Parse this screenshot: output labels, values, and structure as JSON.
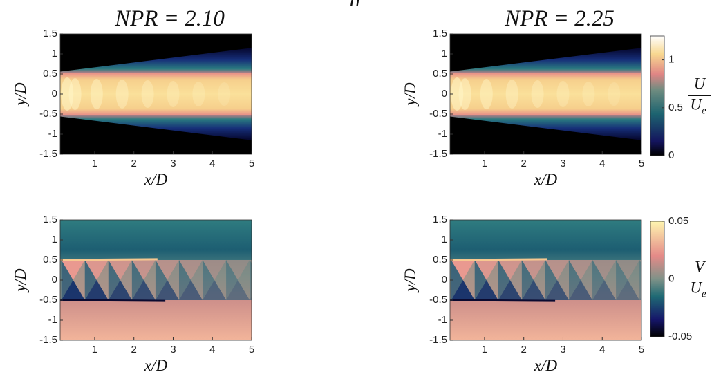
{
  "suptitle": "ff",
  "chart_data": [
    {
      "type": "heatmap",
      "title": "NPR = 2.10",
      "xlabel": "x/D",
      "ylabel": "y/D",
      "field": "U",
      "xlim": [
        0.12,
        5
      ],
      "ylim": [
        -1.5,
        1.5
      ],
      "xticks": [
        1,
        2,
        3,
        4,
        5
      ],
      "yticks": [
        -1.5,
        -1,
        -0.5,
        0,
        0.5,
        1,
        1.5
      ]
    },
    {
      "type": "heatmap",
      "title": "NPR = 2.25",
      "xlabel": "x/D",
      "ylabel": "y/D",
      "field": "U",
      "xlim": [
        0.12,
        5
      ],
      "ylim": [
        -1.5,
        1.5
      ],
      "xticks": [
        1,
        2,
        3,
        4,
        5
      ],
      "yticks": [
        -1.5,
        -1,
        -0.5,
        0,
        0.5,
        1,
        1.5
      ],
      "colorbar": {
        "label_numerator": "U",
        "label_denominator": "U",
        "label_subscript": "e",
        "clim": [
          0,
          1.25
        ],
        "ticks": [
          0,
          0.5,
          1
        ]
      }
    },
    {
      "type": "heatmap",
      "xlabel": "x/D",
      "ylabel": "y/D",
      "field": "V",
      "xlim": [
        0.12,
        5
      ],
      "ylim": [
        -1.5,
        1.5
      ],
      "xticks": [
        1,
        2,
        3,
        4,
        5
      ],
      "yticks": [
        -1.5,
        -1,
        -0.5,
        0,
        0.5,
        1,
        1.5
      ]
    },
    {
      "type": "heatmap",
      "xlabel": "x/D",
      "ylabel": "y/D",
      "field": "V",
      "xlim": [
        0.12,
        5
      ],
      "ylim": [
        -1.5,
        1.5
      ],
      "xticks": [
        1,
        2,
        3,
        4,
        5
      ],
      "yticks": [
        -1.5,
        -1,
        -0.5,
        0,
        0.5,
        1,
        1.5
      ],
      "colorbar": {
        "label_numerator": "V",
        "label_denominator": "U",
        "label_subscript": "e",
        "clim": [
          -0.05,
          0.05
        ],
        "ticks": [
          -0.05,
          0,
          0.05
        ]
      }
    }
  ]
}
